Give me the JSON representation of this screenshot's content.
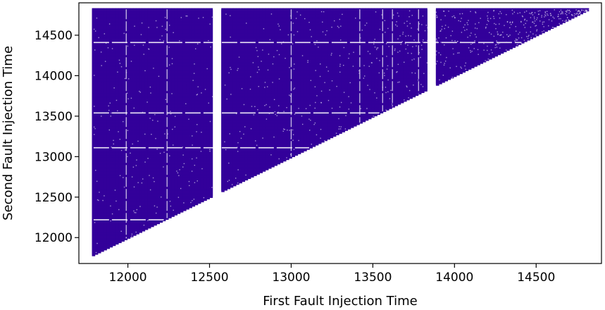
{
  "chart_data": {
    "type": "scatter",
    "xlabel": "First Fault Injection Time",
    "ylabel": "Second Fault Injection Time",
    "xlim": [
      11700,
      14900
    ],
    "ylim": [
      11680,
      14900
    ],
    "x_ticks": [
      12000,
      12500,
      13000,
      13500,
      14000,
      14500
    ],
    "y_ticks": [
      12000,
      12500,
      13000,
      13500,
      14000,
      14500
    ],
    "x_tick_labels": [
      "12000",
      "12500",
      "13000",
      "13500",
      "14000",
      "14500"
    ],
    "y_tick_labels": [
      "12000",
      "12500",
      "13000",
      "13500",
      "14000",
      "14500"
    ],
    "grid": false,
    "legend": "none",
    "color": "#33009a",
    "point_region": {
      "x_min": 11790,
      "x_max": 14820,
      "y_max": 14820,
      "constraint": "second fault time >= first fault time"
    },
    "empty_x_bands": [
      [
        12520,
        12580
      ],
      [
        13840,
        13880
      ]
    ],
    "sparse_x_lines": [
      11990,
      12240,
      13000,
      13420,
      13560,
      13620,
      13780
    ],
    "sparse_y_lines": [
      12220,
      13110,
      13540,
      14410
    ]
  }
}
